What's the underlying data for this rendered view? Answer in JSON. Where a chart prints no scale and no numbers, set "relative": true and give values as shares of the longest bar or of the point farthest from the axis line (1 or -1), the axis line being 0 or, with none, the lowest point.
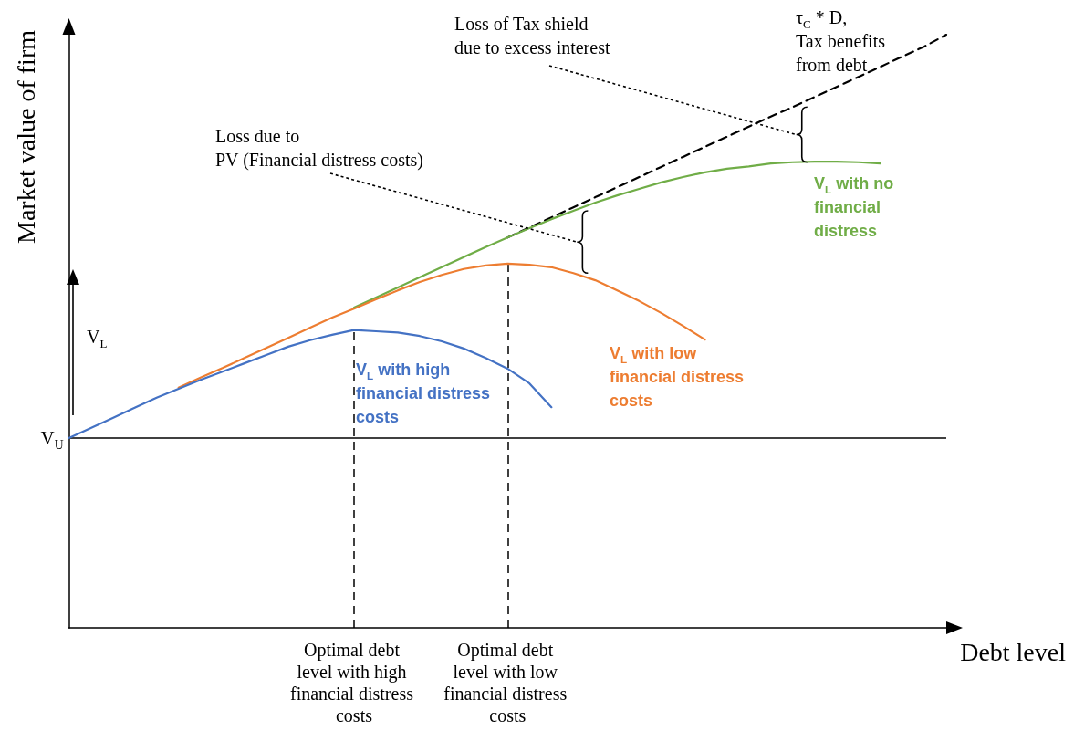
{
  "chart_data": {
    "type": "line",
    "relative": true,
    "xlabel": "Debt level",
    "ylabel": "Market value of firm",
    "categories": [
      null,
      null,
      null,
      null,
      null,
      null,
      null,
      null,
      null,
      null,
      null,
      null,
      null,
      "Optimal debt level with high financial distress costs",
      null,
      null,
      null,
      null,
      null,
      null,
      "Optimal debt level with low financial distress costs",
      null,
      null,
      null,
      null,
      null,
      null,
      null,
      null,
      null,
      null,
      null,
      null,
      null,
      null,
      null,
      null,
      null,
      null,
      null,
      null
    ],
    "series": [
      {
        "name": "V$_{L}$ with high financial distress costs",
        "color": "#4472c4",
        "values": [
          0.32,
          0.337,
          0.354,
          0.371,
          0.388,
          0.403,
          0.418,
          0.432,
          0.446,
          0.46,
          0.474,
          0.485,
          0.494,
          0.502,
          0.5,
          0.498,
          0.492,
          0.483,
          0.471,
          0.455,
          0.437,
          0.412,
          0.372,
          null,
          null,
          null,
          null,
          null,
          null,
          null,
          null,
          null,
          null,
          null,
          null,
          null,
          null,
          null,
          null,
          null,
          null
        ]
      },
      {
        "name": "V$_{L}$ with low financial distress costs",
        "color": "#ed7d31",
        "values": [
          null,
          null,
          null,
          null,
          null,
          0.405,
          0.422,
          0.438,
          0.455,
          0.472,
          0.489,
          0.506,
          0.523,
          0.538,
          0.554,
          0.569,
          0.583,
          0.595,
          0.605,
          0.611,
          0.614,
          0.612,
          0.608,
          0.598,
          0.586,
          0.569,
          0.551,
          0.531,
          0.509,
          0.486,
          null,
          null,
          null,
          null,
          null,
          null,
          null,
          null,
          null,
          null,
          null
        ]
      },
      {
        "name": "V$_{L}$ with no financial distress",
        "color": "#70ad47",
        "values": [
          null,
          null,
          null,
          null,
          null,
          null,
          null,
          null,
          null,
          null,
          null,
          null,
          null,
          0.54,
          0.557,
          0.574,
          0.591,
          0.608,
          0.625,
          0.642,
          0.658,
          0.674,
          0.689,
          0.703,
          0.717,
          0.729,
          0.74,
          0.751,
          0.76,
          0.768,
          0.774,
          0.778,
          0.783,
          0.785,
          0.786,
          0.786,
          0.785,
          0.783,
          null,
          null,
          null
        ]
      },
      {
        "name": "τ$_{C}$ * D,\nTax benefits\nfrom debt",
        "color": "#000000",
        "line_style": "dashed",
        "values": [
          null,
          null,
          null,
          null,
          null,
          null,
          null,
          null,
          null,
          null,
          null,
          null,
          null,
          null,
          null,
          null,
          null,
          null,
          null,
          null,
          0.658,
          0.675,
          0.692,
          0.709,
          0.726,
          0.743,
          0.76,
          0.777,
          0.794,
          0.811,
          0.828,
          0.845,
          0.862,
          0.878,
          0.895,
          0.912,
          0.929,
          0.946,
          0.963,
          0.98,
          1
        ]
      }
    ],
    "ref_lines": [
      {
        "axis": "y",
        "value": 0.32,
        "label": "V$_{U}$",
        "color": "#000000",
        "line_style": "solid"
      },
      {
        "axis": "x",
        "value": "Optimal debt level with high financial distress costs",
        "color": "#000000",
        "line_style": "dashed"
      },
      {
        "axis": "x",
        "value": "Optimal debt level with low financial distress costs",
        "color": "#000000",
        "line_style": "dashed"
      }
    ],
    "annotations": [
      "Loss due to\nPV (Financial distress costs)",
      "Loss of Tax shield\ndue to excess interest",
      "V$_{L}$"
    ],
    "legend": false,
    "grid": false,
    "marker": "none",
    "line_style": "solid",
    "tick_labels": "x"
  }
}
